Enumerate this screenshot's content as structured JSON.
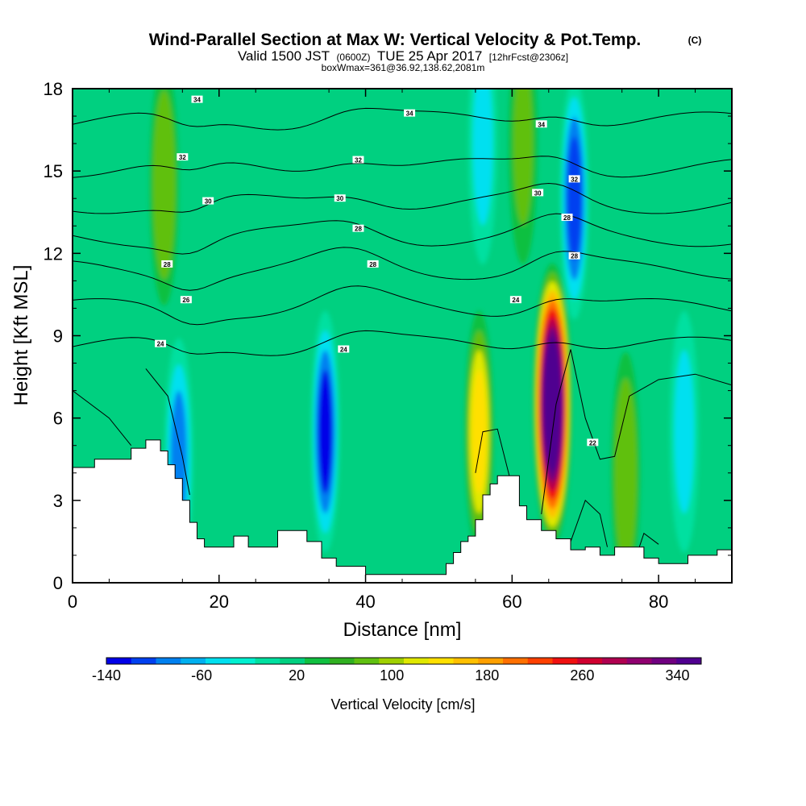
{
  "header": {
    "title": "Wind-Parallel Section at Max W: Vertical Velocity & Pot.Temp.",
    "copyright": "(C)",
    "valid_prefix": "Valid 1500 JST",
    "valid_utc": "(0600Z)",
    "valid_date": "TUE 25 Apr 2017",
    "forecast": "[12hrFcst@2306z]",
    "box_info": "boxWmax=361@36.92,138.62,2081m"
  },
  "chart_data": {
    "type": "heatmap",
    "title": "Wind-Parallel Section at Max W: Vertical Velocity & Pot.Temp.",
    "xlabel": "Distance [nm]",
    "ylabel": "Height [Kft MSL]",
    "xlim": [
      0,
      90
    ],
    "ylim": [
      0,
      18
    ],
    "x_ticks": [
      0,
      20,
      40,
      60,
      80
    ],
    "y_ticks": [
      0,
      3,
      6,
      9,
      12,
      15,
      18
    ],
    "colorbar": {
      "label": "Vertical Velocity [cm/s]",
      "min": -140,
      "max": 360,
      "step": 20,
      "tick_values": [
        -140,
        -60,
        20,
        100,
        180,
        260,
        340
      ],
      "colors": [
        "#0000e8",
        "#0040f0",
        "#0080f0",
        "#00b0f0",
        "#00e0f0",
        "#00f0d0",
        "#00e0a0",
        "#00d080",
        "#10c040",
        "#30b020",
        "#60c010",
        "#a0d000",
        "#e0e800",
        "#ffe000",
        "#ffc000",
        "#ffa000",
        "#ff7000",
        "#ff4000",
        "#f01010",
        "#d00030",
        "#b00050",
        "#900070",
        "#700080",
        "#500090"
      ]
    },
    "terrain": {
      "x": [
        0,
        3,
        5,
        8,
        10,
        12,
        13,
        14,
        15,
        16,
        17,
        18,
        20,
        22,
        24,
        26,
        28,
        30,
        32,
        34,
        36,
        38,
        40,
        45,
        50,
        51,
        52,
        53,
        54,
        55,
        56,
        57,
        58,
        60,
        61,
        62,
        64,
        66,
        68,
        70,
        72,
        74,
        76,
        78,
        80,
        84,
        86,
        88,
        90
      ],
      "y": [
        4.2,
        4.5,
        4.5,
        4.9,
        5.2,
        4.8,
        4.3,
        3.8,
        3.0,
        2.2,
        1.6,
        1.3,
        1.3,
        1.7,
        1.3,
        1.3,
        1.9,
        1.9,
        1.5,
        0.9,
        0.6,
        0.6,
        0.3,
        0.3,
        0.3,
        0.7,
        1.1,
        1.5,
        1.7,
        2.3,
        3.2,
        3.6,
        3.9,
        3.9,
        2.8,
        2.3,
        1.9,
        1.6,
        1.2,
        1.3,
        1.0,
        1.3,
        1.3,
        0.9,
        0.7,
        1.0,
        1.0,
        1.2,
        1.3
      ]
    },
    "velocity_features": [
      {
        "x": 34.5,
        "y": 5.5,
        "w": -140
      },
      {
        "x": 65.5,
        "y": 6.5,
        "w": 361
      },
      {
        "x": 55.5,
        "y": 5.5,
        "w": 120
      },
      {
        "x": 68.5,
        "y": 14.0,
        "w": -110
      },
      {
        "x": 14.5,
        "y": 4.5,
        "w": -100
      },
      {
        "x": 83.5,
        "y": 5.5,
        "w": -60
      },
      {
        "x": 75.5,
        "y": 4.0,
        "w": 70
      },
      {
        "x": 12.5,
        "y": 14.5,
        "w": 70
      },
      {
        "x": 61.5,
        "y": 16.0,
        "w": 60
      },
      {
        "x": 56.0,
        "y": 16.0,
        "w": -60
      }
    ],
    "isentropes": [
      {
        "label": "24",
        "y": 8.6
      },
      {
        "label": "26",
        "y": 10.0
      },
      {
        "label": "28",
        "y": 11.4
      },
      {
        "label": "28",
        "y": 12.6
      },
      {
        "label": "30",
        "y": 13.8
      },
      {
        "label": "32",
        "y": 15.1
      },
      {
        "label": "34",
        "y": 16.8
      }
    ],
    "isentrope_label_spots": [
      {
        "text": "34",
        "x": 17.0,
        "y": 17.6
      },
      {
        "text": "34",
        "x": 46.0,
        "y": 17.1
      },
      {
        "text": "34",
        "x": 64.0,
        "y": 16.7
      },
      {
        "text": "32",
        "x": 15.0,
        "y": 15.5
      },
      {
        "text": "32",
        "x": 39.0,
        "y": 15.4
      },
      {
        "text": "32",
        "x": 68.5,
        "y": 14.7
      },
      {
        "text": "30",
        "x": 18.5,
        "y": 13.9
      },
      {
        "text": "30",
        "x": 36.5,
        "y": 14.0
      },
      {
        "text": "30",
        "x": 63.5,
        "y": 14.2
      },
      {
        "text": "28",
        "x": 39.0,
        "y": 12.9
      },
      {
        "text": "28",
        "x": 67.5,
        "y": 13.3
      },
      {
        "text": "28",
        "x": 68.5,
        "y": 11.9
      },
      {
        "text": "28",
        "x": 12.9,
        "y": 11.6
      },
      {
        "text": "28",
        "x": 41.0,
        "y": 11.6
      },
      {
        "text": "26",
        "x": 15.5,
        "y": 10.3
      },
      {
        "text": "24",
        "x": 60.5,
        "y": 10.3
      },
      {
        "text": "24",
        "x": 12.0,
        "y": 8.7
      },
      {
        "text": "24",
        "x": 37.0,
        "y": 8.5
      },
      {
        "text": "22",
        "x": 71.0,
        "y": 5.1
      }
    ]
  }
}
